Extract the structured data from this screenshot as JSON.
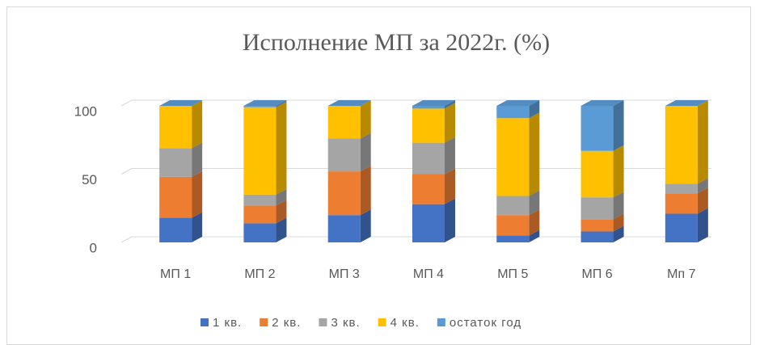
{
  "chart_data": {
    "type": "bar3d_stacked",
    "title": "Исполнение МП за  2022г. (%)",
    "categories": [
      "МП 1",
      "МП 2",
      "МП 3",
      "МП 4",
      "МП 5",
      "МП 6",
      "Мп 7"
    ],
    "series": [
      {
        "name": "1 кв.",
        "color": "#4472c4",
        "values": [
          18,
          14,
          20,
          28,
          5,
          8,
          21
        ]
      },
      {
        "name": "2 кв.",
        "color": "#ed7d31",
        "values": [
          30,
          13,
          32,
          22,
          15,
          9,
          15
        ]
      },
      {
        "name": "3 кв.",
        "color": "#a5a5a5",
        "values": [
          21,
          8,
          24,
          23,
          14,
          16,
          7
        ]
      },
      {
        "name": "4 кв.",
        "color": "#ffc000",
        "values": [
          31,
          64,
          24,
          25,
          57,
          34,
          57
        ]
      },
      {
        "name": "остаток год",
        "color": "#5b9bd5",
        "values": [
          0,
          1,
          0,
          2,
          9,
          33,
          0
        ]
      }
    ],
    "ylim": [
      0,
      100
    ],
    "yticks": [
      0,
      50,
      100
    ],
    "grid": true,
    "legend": "bottom",
    "stacked": true
  }
}
